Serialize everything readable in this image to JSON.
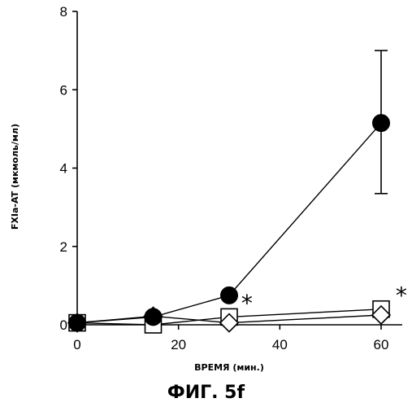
{
  "figure": {
    "caption": "ФИГ. 5f"
  },
  "chart_data": {
    "type": "line",
    "title": "",
    "xlabel": "ВРЕМЯ (мин.)",
    "ylabel": "FXIa-AT (мкмоль/мл)",
    "xlim": [
      0,
      65
    ],
    "ylim": [
      0,
      8
    ],
    "xticks": [
      0,
      20,
      40,
      60
    ],
    "yticks": [
      0,
      2,
      4,
      6,
      8
    ],
    "grid": false,
    "legend": "none",
    "series": [
      {
        "marker": "filled-circle",
        "points": [
          {
            "x": 0,
            "y": 0.05
          },
          {
            "x": 15,
            "y": 0.2
          },
          {
            "x": 30,
            "y": 0.75
          },
          {
            "x": 60,
            "y": 5.15
          }
        ],
        "error": [
          {
            "x": 60,
            "low": 3.35,
            "high": 7.0
          }
        ]
      },
      {
        "marker": "open-square",
        "points": [
          {
            "x": 0,
            "y": 0.05
          },
          {
            "x": 15,
            "y": 0.0
          },
          {
            "x": 30,
            "y": 0.2
          },
          {
            "x": 60,
            "y": 0.4
          }
        ]
      },
      {
        "marker": "open-diamond",
        "points": [
          {
            "x": 0,
            "y": 0.05
          },
          {
            "x": 15,
            "y": 0.22
          },
          {
            "x": 30,
            "y": 0.05
          },
          {
            "x": 60,
            "y": 0.25
          }
        ]
      }
    ],
    "annotations": [
      {
        "text": "*",
        "x": 33.5,
        "y": 0.6
      },
      {
        "text": "*",
        "x": 64,
        "y": 0.8
      }
    ]
  }
}
